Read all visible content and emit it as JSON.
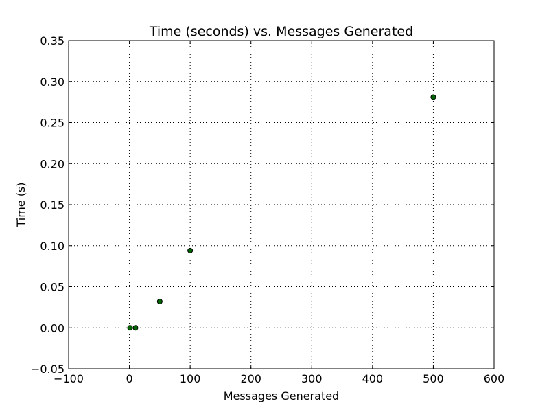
{
  "chart_data": {
    "type": "scatter",
    "title": "Time (seconds) vs. Messages Generated",
    "xlabel": "Messages Generated",
    "ylabel": "Time (s)",
    "xlim": [
      -100,
      600
    ],
    "ylim": [
      -0.05,
      0.35
    ],
    "x_ticks": [
      -100,
      0,
      100,
      200,
      300,
      400,
      500,
      600
    ],
    "x_tick_labels": [
      "−100",
      "0",
      "100",
      "200",
      "300",
      "400",
      "500",
      "600"
    ],
    "y_ticks": [
      -0.05,
      0.0,
      0.05,
      0.1,
      0.15,
      0.2,
      0.25,
      0.3,
      0.35
    ],
    "y_tick_labels": [
      "−0.05",
      "0.00",
      "0.05",
      "0.10",
      "0.15",
      "0.20",
      "0.25",
      "0.30",
      "0.35"
    ],
    "grid": true,
    "grid_style": "dotted",
    "marker_color": "#006400",
    "marker_edge_color": "#000000",
    "points": [
      {
        "x": 1,
        "y": 0.0
      },
      {
        "x": 10,
        "y": 0.0
      },
      {
        "x": 50,
        "y": 0.032
      },
      {
        "x": 100,
        "y": 0.094
      },
      {
        "x": 500,
        "y": 0.281
      }
    ]
  }
}
